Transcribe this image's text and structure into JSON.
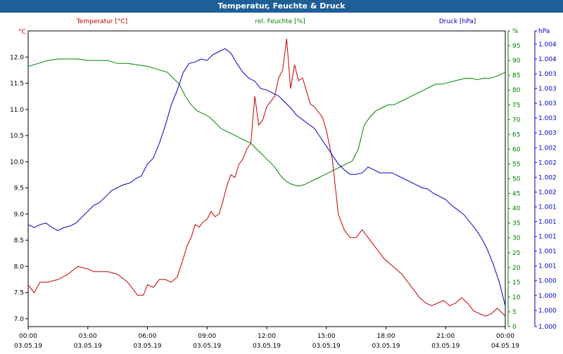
{
  "window": {
    "title": "Temperatur, Feuchte & Druck"
  },
  "chart_data": {
    "type": "line",
    "title": "Temperatur, Feuchte & Druck",
    "x_tick_labels": [
      [
        "00:00",
        "03.05.19"
      ],
      [
        "03:00",
        "03.05.19"
      ],
      [
        "06:00",
        "03.05.19"
      ],
      [
        "09:00",
        "03.05.19"
      ],
      [
        "12:00",
        "03.05.19"
      ],
      [
        "15:00",
        "03.05.19"
      ],
      [
        "18:00",
        "03.05.19"
      ],
      [
        "21:00",
        "03.05.19"
      ],
      [
        "00:00",
        "04.05.19"
      ]
    ],
    "x_range_hours": [
      0,
      24
    ],
    "colors": {
      "temperature": "#c00000",
      "humidity": "#008000",
      "pressure": "#0000c0"
    },
    "axes": {
      "left": {
        "unit": "°C",
        "range": [
          6.85,
          12.5
        ],
        "ticks": [
          "7.0",
          "7.5",
          "8.0",
          "8.5",
          "9.0",
          "9.5",
          "10.0",
          "10.5",
          "11.0",
          "11.5",
          "12.0"
        ],
        "tick_values": [
          7.0,
          7.5,
          8.0,
          8.5,
          9.0,
          9.5,
          10.0,
          10.5,
          11.0,
          11.5,
          12.0
        ]
      },
      "right1": {
        "unit": "%",
        "range": [
          0,
          100
        ],
        "ticks": [
          "0",
          "5",
          "10",
          "15",
          "20",
          "25",
          "30",
          "35",
          "40",
          "45",
          "50",
          "55",
          "60",
          "65",
          "70",
          "75",
          "80",
          "85",
          "90",
          "95",
          "%"
        ],
        "tick_values": [
          0,
          5,
          10,
          15,
          20,
          25,
          30,
          35,
          40,
          45,
          50,
          55,
          60,
          65,
          70,
          75,
          80,
          85,
          90,
          95,
          100
        ]
      },
      "right2": {
        "unit": "hPa",
        "range": [
          0,
          100
        ],
        "ticks": [
          "1.000",
          "1.000",
          "1.000",
          "1.000",
          "1.001",
          "1.001",
          "1.001",
          "1.001",
          "1.001",
          "1.002",
          "1.002",
          "1.002",
          "1.002",
          "1.003",
          "1.003",
          "1.003",
          "1.003",
          "1.003",
          "1.004",
          "1.004",
          "hPa"
        ],
        "tick_values": [
          0,
          5.5,
          10.5,
          15.5,
          20.5,
          25.5,
          30.5,
          35.5,
          40.5,
          45.5,
          50.5,
          55.5,
          60.5,
          65.5,
          70.5,
          75.5,
          80.5,
          85.5,
          90.5,
          95.5,
          100
        ]
      }
    },
    "grid": true,
    "series": [
      {
        "name": "Temperatur [°C]",
        "axis": "left",
        "key": "temperature",
        "x": [
          0,
          0.3,
          0.6,
          1.0,
          1.5,
          2.0,
          2.5,
          3.0,
          3.3,
          3.6,
          4.0,
          4.5,
          5.0,
          5.5,
          5.8,
          6.0,
          6.3,
          6.6,
          6.9,
          7.2,
          7.5,
          7.8,
          8.0,
          8.2,
          8.4,
          8.6,
          8.8,
          9.0,
          9.2,
          9.4,
          9.6,
          9.8,
          10.0,
          10.2,
          10.4,
          10.6,
          10.8,
          11.0,
          11.2,
          11.4,
          11.6,
          11.8,
          12.0,
          12.2,
          12.4,
          12.6,
          12.8,
          13.0,
          13.2,
          13.4,
          13.6,
          13.8,
          14.0,
          14.2,
          14.4,
          14.6,
          14.8,
          15.0,
          15.3,
          15.6,
          15.9,
          16.2,
          16.5,
          16.8,
          17.0,
          17.3,
          17.6,
          17.9,
          18.2,
          18.5,
          18.8,
          19.1,
          19.4,
          19.7,
          20.0,
          20.3,
          20.6,
          20.9,
          21.2,
          21.5,
          21.8,
          22.1,
          22.4,
          22.7,
          23.0,
          23.3,
          23.6,
          24.0
        ],
        "values": [
          7.65,
          7.5,
          7.7,
          7.7,
          7.75,
          7.85,
          8.0,
          7.95,
          7.9,
          7.9,
          7.9,
          7.85,
          7.7,
          7.45,
          7.45,
          7.65,
          7.6,
          7.75,
          7.75,
          7.7,
          7.8,
          8.15,
          8.4,
          8.55,
          8.8,
          8.75,
          8.85,
          8.9,
          9.05,
          8.95,
          9.0,
          9.25,
          9.55,
          9.75,
          9.7,
          9.95,
          10.05,
          10.25,
          10.35,
          11.25,
          10.7,
          10.8,
          11.05,
          11.15,
          11.25,
          11.6,
          11.75,
          12.35,
          11.4,
          11.85,
          11.55,
          11.6,
          11.35,
          11.1,
          11.05,
          10.95,
          10.85,
          10.6,
          10.05,
          9.0,
          8.7,
          8.55,
          8.55,
          8.7,
          8.6,
          8.45,
          8.3,
          8.15,
          8.05,
          7.95,
          7.85,
          7.7,
          7.55,
          7.4,
          7.3,
          7.25,
          7.3,
          7.35,
          7.25,
          7.3,
          7.4,
          7.3,
          7.15,
          7.1,
          7.05,
          7.1,
          7.2,
          7.05
        ]
      },
      {
        "name": "rel. Feuchte [%]",
        "axis": "right1",
        "key": "humidity",
        "x": [
          0,
          0.5,
          1.0,
          1.5,
          2.0,
          2.5,
          3.0,
          3.5,
          4.0,
          4.5,
          5.0,
          5.5,
          6.0,
          6.5,
          7.0,
          7.3,
          7.6,
          7.9,
          8.2,
          8.5,
          8.8,
          9.1,
          9.4,
          9.7,
          10.0,
          10.3,
          10.6,
          10.9,
          11.2,
          11.5,
          11.8,
          12.1,
          12.4,
          12.7,
          13.0,
          13.3,
          13.6,
          13.9,
          14.2,
          14.5,
          14.8,
          15.1,
          15.4,
          15.7,
          16.0,
          16.3,
          16.6,
          16.9,
          17.2,
          17.5,
          17.8,
          18.1,
          18.4,
          18.7,
          19.0,
          19.3,
          19.6,
          19.9,
          20.2,
          20.5,
          20.8,
          21.1,
          21.4,
          21.7,
          22.0,
          22.3,
          22.6,
          22.9,
          23.2,
          23.5,
          24.0
        ],
        "values": [
          88,
          89,
          90,
          90.5,
          90.5,
          90.5,
          90,
          90,
          90,
          89,
          89,
          88.5,
          88,
          87,
          86,
          84,
          82,
          78,
          75,
          73,
          72,
          71,
          69,
          67,
          66,
          65,
          64,
          63,
          62,
          60,
          58,
          56,
          54,
          51,
          49,
          48,
          47.5,
          48,
          49,
          50,
          51,
          52,
          53,
          54,
          55,
          56,
          60,
          68,
          71,
          73,
          74,
          75,
          75,
          76,
          77,
          78,
          79,
          80,
          81,
          82,
          82,
          82.5,
          83,
          83.5,
          84,
          84,
          83.5,
          84,
          84,
          84.5,
          86
        ]
      },
      {
        "name": "Druck [hPa]",
        "axis": "right2",
        "key": "pressure",
        "x": [
          0,
          0.3,
          0.6,
          0.9,
          1.2,
          1.5,
          1.8,
          2.1,
          2.4,
          2.7,
          3.0,
          3.3,
          3.6,
          3.9,
          4.2,
          4.5,
          4.8,
          5.1,
          5.4,
          5.7,
          6.0,
          6.3,
          6.6,
          6.9,
          7.2,
          7.5,
          7.8,
          8.1,
          8.4,
          8.7,
          9.0,
          9.3,
          9.6,
          9.9,
          10.2,
          10.5,
          10.8,
          11.1,
          11.4,
          11.7,
          12.0,
          12.3,
          12.6,
          12.9,
          13.2,
          13.5,
          13.8,
          14.1,
          14.4,
          14.7,
          15.0,
          15.3,
          15.6,
          15.9,
          16.2,
          16.5,
          16.8,
          17.1,
          17.4,
          17.7,
          18.0,
          18.3,
          18.6,
          18.9,
          19.2,
          19.5,
          19.8,
          20.1,
          20.4,
          20.7,
          21.0,
          21.3,
          21.6,
          21.9,
          22.2,
          22.5,
          22.8,
          23.1,
          23.4,
          23.7,
          24.0
        ],
        "values": [
          34.5,
          33.5,
          34.5,
          35,
          33.5,
          32.5,
          33.5,
          34,
          35,
          37,
          39,
          41,
          42,
          44,
          46,
          47,
          48,
          48.5,
          50,
          51,
          55,
          57,
          62,
          68,
          75,
          80,
          86,
          89,
          89.5,
          90.5,
          90,
          92,
          93,
          94,
          92.5,
          89,
          86,
          84,
          83,
          80.5,
          80,
          79,
          78,
          76,
          74,
          71.5,
          70,
          68.5,
          67,
          64,
          61,
          58,
          55,
          53,
          51.5,
          51.5,
          52,
          54,
          53,
          52,
          52,
          52,
          51,
          50,
          49,
          48,
          47,
          46.5,
          45,
          44,
          43,
          41,
          39.5,
          38,
          35.5,
          33,
          30,
          26,
          21,
          15,
          7
        ]
      }
    ]
  }
}
